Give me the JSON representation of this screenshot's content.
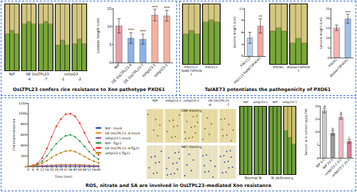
{
  "panels": [
    {
      "caption": "OsLTPL23 confers rice resistance to Xoo pathotype PXO61",
      "photos": [
        {
          "label": "NIP"
        },
        {
          "label": "OE OsLTPL23",
          "lanes": [
            "-4",
            "-7"
          ]
        },
        {
          "label": "osltpl23",
          "lanes": [
            "-1",
            "-2"
          ]
        }
      ]
    },
    {
      "caption": "TaIAE73 potentiates the pathogenicity of PXO61",
      "photos": [
        [
          {
            "label": "PXO112-TaIAE73PXO61"
          },
          {
            "label": "PXO112"
          }
        ],
        [
          {
            "label": "PXO61"
          },
          {
            "label": "ΔtaIae73PXO61"
          }
        ]
      ]
    },
    {
      "caption": "ROS, nitrate and SA are involved in OsLTPL23-mediated Xoo resistance",
      "staining": {
        "columns": [
          {
            "label": "NIP"
          },
          {
            "label": "osltpl23-1"
          },
          {
            "label": "osltpl23-2"
          },
          {
            "label": "OE OsLTPL23",
            "lanes": [
              "-4",
              "-7"
            ]
          }
        ],
        "rows": [
          "DAB staining",
          "NBT staining"
        ]
      },
      "nitrate": {
        "conditions": [
          "Normal N",
          "N deficiency"
        ],
        "genotypes": [
          "NIP",
          "osltpl23-1"
        ]
      }
    }
  ],
  "chart_data": [
    {
      "type": "bar",
      "ylabel": "Lesions length (cm)",
      "categories": [
        "NIP",
        "OE OsLTPL23-4",
        "OE OsLTPL23-7",
        "osltpl23-1",
        "osltpl23-2"
      ],
      "values": [
        10.2,
        6.8,
        6.5,
        13.2,
        13.0
      ],
      "errors": [
        2.0,
        1.5,
        1.4,
        1.6,
        1.5
      ],
      "significance": [
        null,
        "***",
        "***",
        "***",
        "***"
      ],
      "colors": [
        "#e9a0a6",
        "#8db2e6",
        "#8db2e6",
        "#f5b09f",
        "#f5b09f"
      ],
      "ylim": [
        0,
        15
      ],
      "yticks": [
        0,
        5,
        10,
        15
      ],
      "grid": false
    },
    {
      "type": "bar",
      "ylabel": "Lesions length (cm)",
      "categories": [
        "PXO112",
        "PXO112-TaIAE73PXO61"
      ],
      "values": [
        4.6,
        7.6
      ],
      "errors": [
        1.4,
        1.8
      ],
      "significance": [
        null,
        "**"
      ],
      "colors": [
        "#bcd3ef",
        "#f2a7a7"
      ],
      "ylim": [
        0,
        12
      ],
      "yticks": [
        0,
        3,
        6,
        9,
        12
      ],
      "grid": false
    },
    {
      "type": "bar",
      "ylabel": "Lesions length (cm)",
      "categories": [
        "PXO61",
        "ΔtaIae73PXO61"
      ],
      "values": [
        15.2,
        19.8
      ],
      "errors": [
        1.4,
        2.3
      ],
      "significance": [
        null,
        "***"
      ],
      "colors": [
        "#f3b4b4",
        "#9fc0ea"
      ],
      "ylim": [
        0,
        25
      ],
      "yticks": [
        0,
        5,
        10,
        15,
        20,
        25
      ],
      "grid": false
    },
    {
      "type": "line",
      "xlabel": "Time (min)",
      "ylabel": "Chemiluminescence",
      "x": [
        0,
        4,
        8,
        12,
        16,
        20,
        24,
        28,
        32,
        36,
        40,
        44,
        48,
        52,
        56,
        60
      ],
      "series": [
        {
          "name": "NIP - mock",
          "color": "#2e4fa3",
          "marker": "circle",
          "values": [
            5,
            8,
            10,
            12,
            15,
            18,
            20,
            22,
            24,
            25,
            24,
            22,
            20,
            18,
            15,
            12
          ]
        },
        {
          "name": "OE OsLTPL23 -4-mock",
          "color": "#e69b3a",
          "marker": "circle",
          "values": [
            5,
            10,
            14,
            18,
            22,
            26,
            30,
            34,
            36,
            38,
            36,
            34,
            30,
            26,
            22,
            18
          ]
        },
        {
          "name": "osltpl23-1-mock",
          "color": "#8e5bb5",
          "marker": "circle",
          "values": [
            4,
            6,
            8,
            10,
            12,
            14,
            15,
            16,
            18,
            18,
            17,
            16,
            14,
            12,
            10,
            9
          ]
        },
        {
          "name": "NIP - flg22",
          "color": "#2f9c48",
          "marker": "circle",
          "values": [
            5,
            15,
            40,
            100,
            200,
            320,
            430,
            520,
            580,
            600,
            560,
            480,
            380,
            280,
            200,
            140
          ]
        },
        {
          "name": "OE OsLTPL23 -4-flg22",
          "color": "#e8302b",
          "marker": "circle",
          "values": [
            5,
            20,
            60,
            160,
            340,
            560,
            760,
            900,
            990,
            1000,
            950,
            820,
            640,
            460,
            320,
            220
          ]
        },
        {
          "name": "osltpl23-1-flg22",
          "color": "#b8861b",
          "marker": "circle",
          "values": [
            5,
            10,
            25,
            60,
            110,
            170,
            220,
            260,
            290,
            300,
            280,
            240,
            190,
            140,
            100,
            70
          ]
        }
      ],
      "xlim": [
        0,
        60
      ],
      "xticks": [
        0,
        4,
        8,
        12,
        16,
        20,
        24,
        28,
        32,
        36,
        40,
        44,
        48,
        52,
        56,
        60
      ],
      "ylim": [
        0,
        1200
      ],
      "yticks": [
        0,
        200,
        400,
        600,
        800,
        1000,
        1200
      ],
      "grid": false,
      "legend": "right"
    },
    {
      "type": "bar",
      "ylabel": "Salicylic acid content (μg/g FW)",
      "categories": [
        "NIP 0 h",
        "NIP 24 h",
        "osltpl23-2 0 h",
        "osltpl23-2 24 h"
      ],
      "values": [
        18.2,
        9.6,
        15.8,
        6.4
      ],
      "errors": [
        0.9,
        0.8,
        0.9,
        0.7
      ],
      "letters": [
        "a",
        "b",
        "a",
        "c"
      ],
      "colors": [
        "#c9c9c9",
        "#9a9a9a",
        "#f0b7c4",
        "#d97a95"
      ],
      "ylim": [
        0,
        20
      ],
      "yticks": [
        0,
        5,
        10,
        15,
        20
      ],
      "grid": false
    }
  ]
}
